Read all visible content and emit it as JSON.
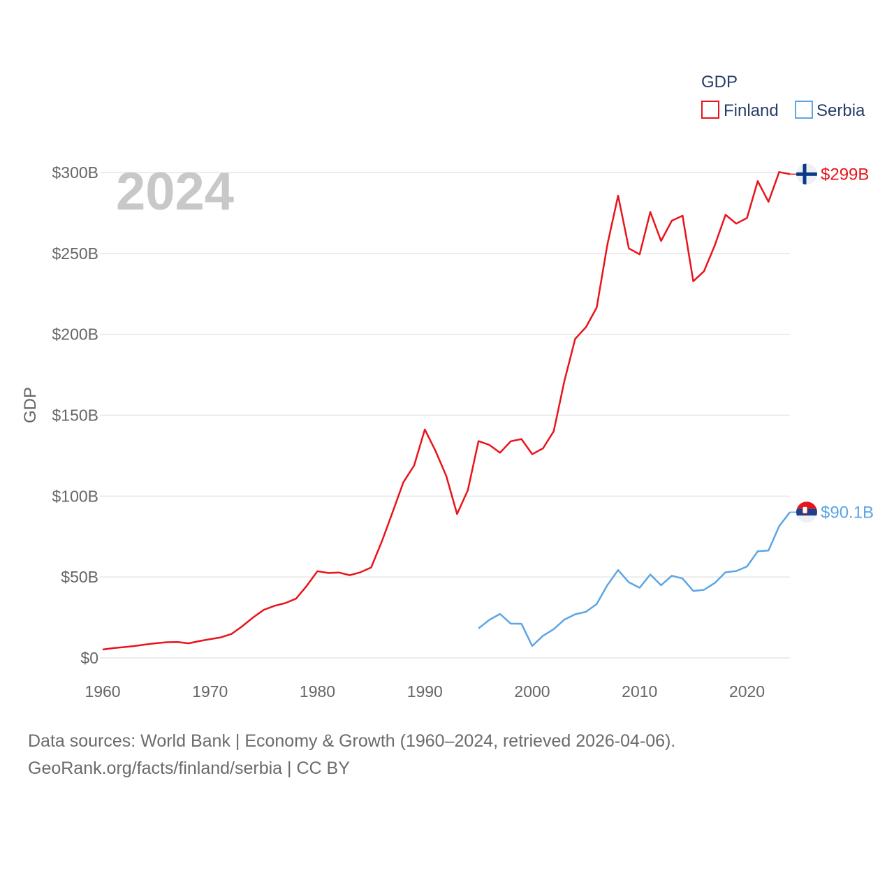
{
  "chart_data": {
    "type": "line",
    "title": "2024",
    "ylabel": "GDP",
    "xlabel": "",
    "xlim": [
      1960,
      2024
    ],
    "ylim": [
      0,
      300
    ],
    "x_ticks": [
      1960,
      1970,
      1980,
      1990,
      2000,
      2010,
      2020
    ],
    "y_ticks": [
      {
        "value": 0,
        "label": "$0"
      },
      {
        "value": 50,
        "label": "$50B"
      },
      {
        "value": 100,
        "label": "$100B"
      },
      {
        "value": 150,
        "label": "$150B"
      },
      {
        "value": 200,
        "label": "$200B"
      },
      {
        "value": 250,
        "label": "$250B"
      },
      {
        "value": 300,
        "label": "$300B"
      }
    ],
    "grid": true,
    "legend": {
      "title": "GDP",
      "position": "top-right"
    },
    "series": [
      {
        "name": "Finland",
        "color": "#e8141c",
        "end_label": "$299B",
        "flag": "finland-flag",
        "x": [
          1960,
          1961,
          1962,
          1963,
          1964,
          1965,
          1966,
          1967,
          1968,
          1969,
          1970,
          1971,
          1972,
          1973,
          1974,
          1975,
          1976,
          1977,
          1978,
          1979,
          1980,
          1981,
          1982,
          1983,
          1984,
          1985,
          1986,
          1987,
          1988,
          1989,
          1990,
          1991,
          1992,
          1993,
          1994,
          1995,
          1996,
          1997,
          1998,
          1999,
          2000,
          2001,
          2002,
          2003,
          2004,
          2005,
          2006,
          2007,
          2008,
          2009,
          2010,
          2011,
          2012,
          2013,
          2014,
          2015,
          2016,
          2017,
          2018,
          2019,
          2020,
          2021,
          2022,
          2023,
          2024
        ],
        "values": [
          5.2,
          6.1,
          6.7,
          7.4,
          8.3,
          9.1,
          9.7,
          9.8,
          9.0,
          10.4,
          11.6,
          12.7,
          14.8,
          19.6,
          25.0,
          29.7,
          32.2,
          33.9,
          36.6,
          44.5,
          53.6,
          52.5,
          52.8,
          51.1,
          52.9,
          55.9,
          72.1,
          90.1,
          108.5,
          118.9,
          141.2,
          127.9,
          112.4,
          88.9,
          103.6,
          134.0,
          131.7,
          126.8,
          133.9,
          135.3,
          125.9,
          129.5,
          140.1,
          171.2,
          197.2,
          204.4,
          216.5,
          255.4,
          285.7,
          253.1,
          249.4,
          275.6,
          257.7,
          270.2,
          273.3,
          232.8,
          239.0,
          255.0,
          273.9,
          268.4,
          271.9,
          294.7,
          281.9,
          300.3,
          299.0
        ]
      },
      {
        "name": "Serbia",
        "color": "#5da5e5",
        "end_label": "$90.1B",
        "flag": "serbia-flag",
        "x": [
          1995,
          1996,
          1997,
          1998,
          1999,
          2000,
          2001,
          2002,
          2003,
          2004,
          2005,
          2006,
          2007,
          2008,
          2009,
          2010,
          2011,
          2012,
          2013,
          2014,
          2015,
          2016,
          2017,
          2018,
          2019,
          2020,
          2021,
          2022,
          2023,
          2024
        ],
        "values": [
          18.2,
          23.5,
          27.2,
          21.2,
          21.1,
          7.4,
          13.7,
          17.8,
          23.7,
          27.0,
          28.5,
          33.3,
          45.0,
          54.3,
          46.7,
          43.4,
          51.6,
          44.9,
          50.8,
          49.1,
          41.4,
          42.1,
          46.3,
          52.9,
          53.7,
          56.5,
          65.9,
          66.4,
          81.4,
          90.1
        ]
      }
    ]
  },
  "footer": {
    "line1": "Data sources: World Bank | Economy & Growth (1960–2024, retrieved 2026-04-06).",
    "line2": "GeoRank.org/facts/finland/serbia | CC BY"
  },
  "colors": {
    "grid": "#e6e6e6",
    "axis_text": "#666666",
    "title_text": "#c8c8c8",
    "legend_text": "#263d66",
    "finland_blue": "#0b3a84",
    "serbia_red": "#e8141c",
    "serbia_blue": "#1f3f86"
  }
}
